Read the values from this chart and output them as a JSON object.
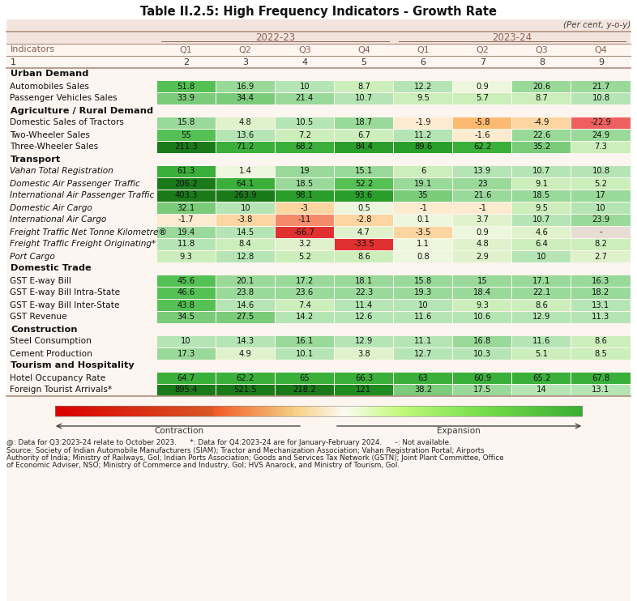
{
  "title": "Table II.2.5: High Frequency Indicators - Growth Rate",
  "subtitle": "(Per cent, y-o-y)",
  "sections": [
    {
      "name": "Urban Demand",
      "is_section": true
    },
    {
      "name": "Automobiles Sales",
      "italic": false,
      "values": [
        51.8,
        16.9,
        10.0,
        8.7,
        12.2,
        0.9,
        20.6,
        21.7
      ]
    },
    {
      "name": "Passenger Vehicles Sales",
      "italic": false,
      "values": [
        33.9,
        34.4,
        21.4,
        10.7,
        9.5,
        5.7,
        8.7,
        10.8
      ]
    },
    {
      "name": "Agriculture / Rural Demand",
      "is_section": true
    },
    {
      "name": "Domestic Sales of Tractors",
      "italic": false,
      "values": [
        15.8,
        4.8,
        10.5,
        18.7,
        -1.9,
        -5.8,
        -4.9,
        -22.9
      ]
    },
    {
      "name": "Two-Wheeler Sales",
      "italic": false,
      "values": [
        55.0,
        13.6,
        7.2,
        6.7,
        11.2,
        -1.6,
        22.6,
        24.9
      ]
    },
    {
      "name": "Three-Wheeler Sales",
      "italic": false,
      "values": [
        211.3,
        71.2,
        68.2,
        84.4,
        89.6,
        62.2,
        35.2,
        7.3
      ]
    },
    {
      "name": "Transport",
      "is_section": true
    },
    {
      "name": "Vahan Total Registration",
      "italic": true,
      "values": [
        61.3,
        1.4,
        19.0,
        15.1,
        6.0,
        13.9,
        10.7,
        10.8
      ]
    },
    {
      "name": "Domestic Air Passenger Traffic",
      "italic": true,
      "values": [
        206.2,
        64.1,
        18.5,
        52.2,
        19.1,
        23.0,
        9.1,
        5.2
      ]
    },
    {
      "name": "International Air Passenger Traffic",
      "italic": true,
      "values": [
        403.3,
        263.9,
        98.1,
        93.6,
        35.0,
        21.6,
        18.5,
        17.0
      ]
    },
    {
      "name": "Domestic Air Cargo",
      "italic": true,
      "values": [
        32.1,
        10.0,
        -3.0,
        0.5,
        -1.0,
        -1.0,
        9.5,
        10.0
      ]
    },
    {
      "name": "International Air Cargo",
      "italic": true,
      "values": [
        -1.7,
        -3.8,
        -11.0,
        -2.8,
        0.1,
        3.7,
        10.7,
        23.9
      ]
    },
    {
      "name": "Freight Traffic Net Tonne Kilometre®",
      "italic": true,
      "values": [
        19.4,
        14.5,
        -66.7,
        4.7,
        -3.5,
        0.9,
        4.6,
        null
      ]
    },
    {
      "name": "Freight Traffic Freight Originating*",
      "italic": true,
      "values": [
        11.8,
        8.4,
        3.2,
        -33.5,
        1.1,
        4.8,
        6.4,
        8.2
      ]
    },
    {
      "name": "Port Cargo",
      "italic": true,
      "values": [
        9.3,
        12.8,
        5.2,
        8.6,
        0.8,
        2.9,
        10.0,
        2.7
      ]
    },
    {
      "name": "Domestic Trade",
      "is_section": true
    },
    {
      "name": "GST E-way Bill",
      "italic": false,
      "values": [
        45.6,
        20.1,
        17.2,
        18.1,
        15.8,
        15.0,
        17.1,
        16.3
      ]
    },
    {
      "name": "GST E-way Bill Intra-State",
      "italic": false,
      "values": [
        46.6,
        23.8,
        23.6,
        22.3,
        19.3,
        18.4,
        22.1,
        18.2
      ]
    },
    {
      "name": "GST E-way Bill Inter-State",
      "italic": false,
      "values": [
        43.8,
        14.6,
        7.4,
        11.4,
        10.0,
        9.3,
        8.6,
        13.1
      ]
    },
    {
      "name": "GST Revenue",
      "italic": false,
      "values": [
        34.5,
        27.5,
        14.2,
        12.6,
        11.6,
        10.6,
        12.9,
        11.3
      ]
    },
    {
      "name": "Construction",
      "is_section": true
    },
    {
      "name": "Steel Consumption",
      "italic": false,
      "values": [
        10.0,
        14.3,
        16.1,
        12.9,
        11.1,
        16.8,
        11.6,
        8.6
      ]
    },
    {
      "name": "Cement Production",
      "italic": false,
      "values": [
        17.3,
        4.9,
        10.1,
        3.8,
        12.7,
        10.3,
        5.1,
        8.5
      ]
    },
    {
      "name": "Tourism and Hospitality",
      "is_section": true
    },
    {
      "name": "Hotel Occupancy Rate",
      "italic": false,
      "values": [
        64.7,
        62.2,
        65.0,
        66.3,
        63.0,
        60.9,
        65.2,
        67.8
      ]
    },
    {
      "name": "Foreign Tourist Arrivals*",
      "italic": false,
      "values": [
        895.4,
        521.5,
        218.2,
        121.0,
        38.2,
        17.5,
        14.0,
        13.1
      ]
    }
  ],
  "footer_note": "@: Data for Q3:2023-24 relate to October 2023.      *: Data for Q4:2023-24 are for January-February 2024.      -: Not available.",
  "footer_source": "Source: Society of Indian Automobile Manufacturers (SIAM); Tractor and Mechanization Association; Vahan Registration Portal; Airports Authority of India; Ministry of Railways, GoI; Indian Ports Association; Goods and Services Tax Network (GSTN); Joint Plant Committee, Office of Economic Adviser, NSO; Ministry of Commerce and Industry, GoI; HVS Anarock, and Ministry of Tourism, GoI."
}
